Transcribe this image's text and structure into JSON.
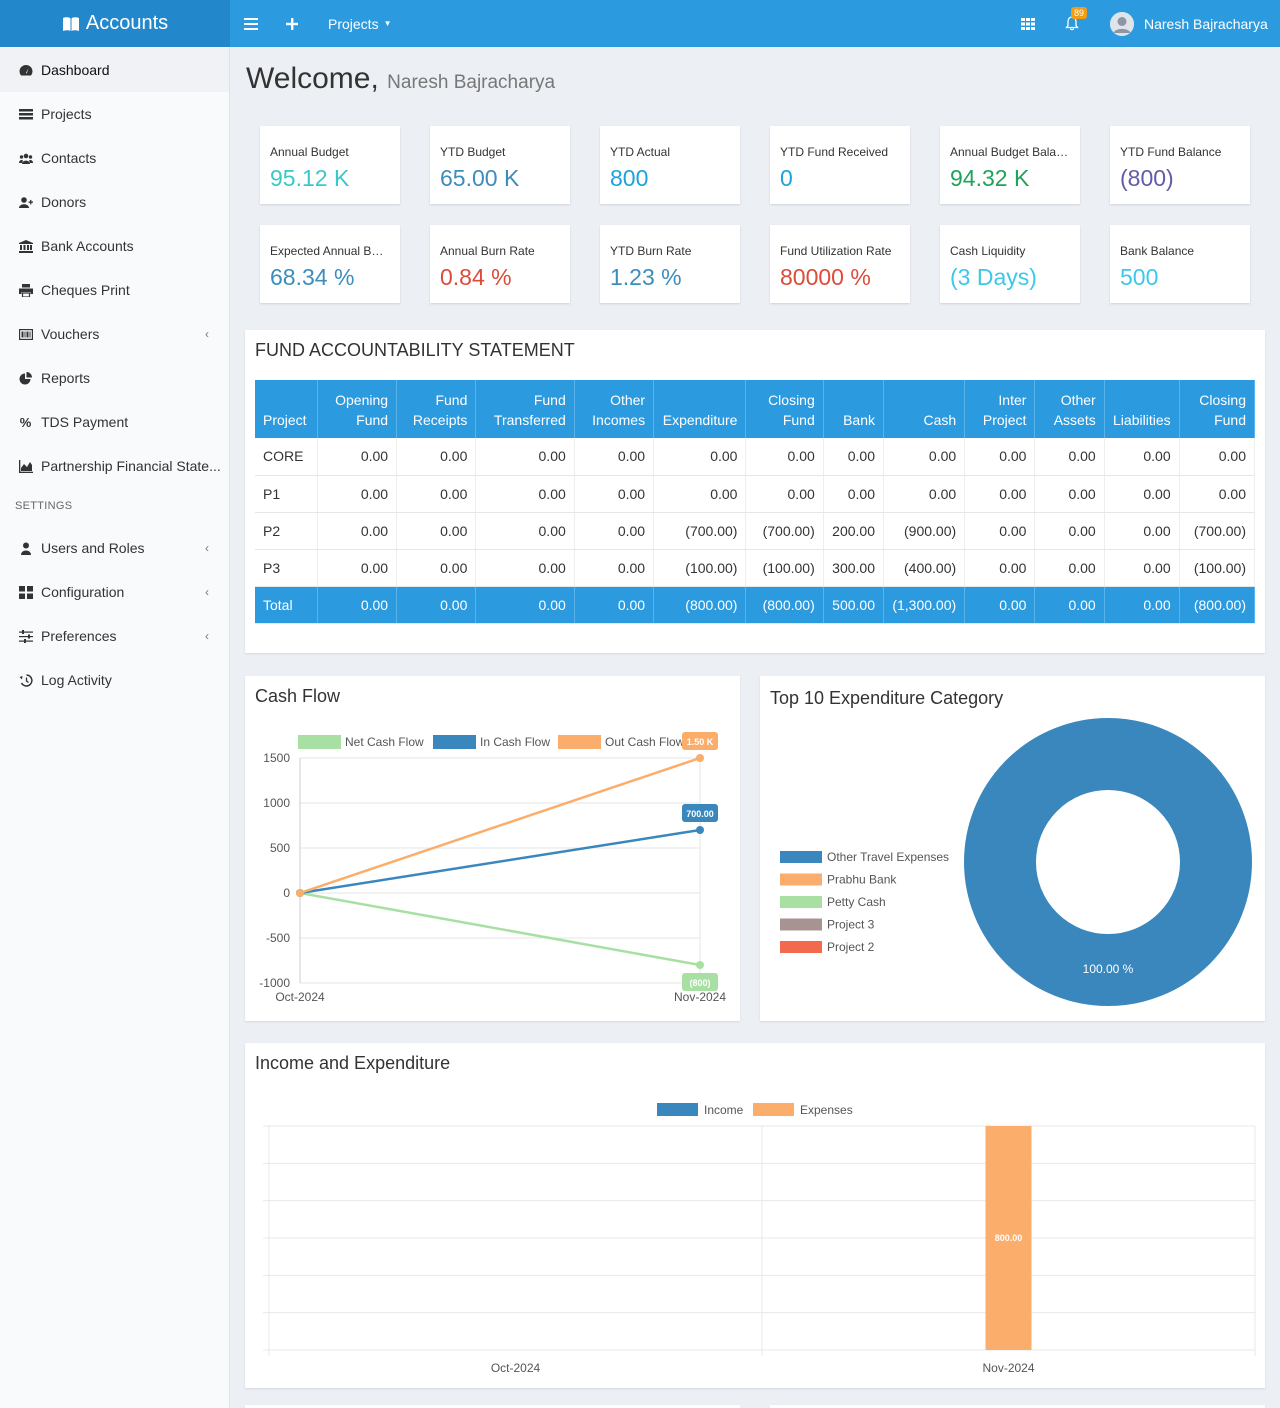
{
  "header": {
    "brand": "Accounts",
    "projects_menu": "Projects",
    "notification_count": "89",
    "user_name": "Naresh Bajracharya"
  },
  "sidebar": {
    "items": [
      {
        "label": "Dashboard",
        "icon": "dashboard-icon"
      },
      {
        "label": "Projects",
        "icon": "list-icon"
      },
      {
        "label": "Contacts",
        "icon": "users-icon"
      },
      {
        "label": "Donors",
        "icon": "user-plus-icon"
      },
      {
        "label": "Bank Accounts",
        "icon": "bank-icon"
      },
      {
        "label": "Cheques Print",
        "icon": "print-icon"
      },
      {
        "label": "Vouchers",
        "icon": "voucher-icon"
      },
      {
        "label": "Reports",
        "icon": "pie-chart-icon"
      },
      {
        "label": "TDS Payment",
        "icon": "percent-icon"
      },
      {
        "label": "Partnership Financial State...",
        "icon": "area-chart-icon"
      }
    ],
    "settings_header": "SETTINGS",
    "settings_items": [
      {
        "label": "Users and Roles",
        "icon": "user-icon"
      },
      {
        "label": "Configuration",
        "icon": "grid-icon"
      },
      {
        "label": "Preferences",
        "icon": "sliders-icon"
      },
      {
        "label": "Log Activity",
        "icon": "history-icon"
      }
    ]
  },
  "welcome": {
    "title": "Welcome,",
    "name": "Naresh Bajracharya"
  },
  "kpis": [
    {
      "label": "Annual Budget",
      "value": "95.12 K",
      "color": "#3cc8cb"
    },
    {
      "label": "YTD Budget",
      "value": "65.00 K",
      "color": "#3c8dbc"
    },
    {
      "label": "YTD Actual",
      "value": "800",
      "color": "#1ca3dc"
    },
    {
      "label": "YTD Fund Received",
      "value": "0",
      "color": "#1ca3dc"
    },
    {
      "label": "Annual Budget Balan...",
      "value": "94.32 K",
      "color": "#1fa35a"
    },
    {
      "label": "YTD Fund Balance",
      "value": "(800)",
      "color": "#605ca8"
    },
    {
      "label": "Expected Annual Bur...",
      "value": "68.34 %",
      "color": "#3c8dbc"
    },
    {
      "label": "Annual Burn Rate",
      "value": "0.84 %",
      "color": "#dd4b39"
    },
    {
      "label": "YTD Burn Rate",
      "value": "1.23 %",
      "color": "#3c8dbc"
    },
    {
      "label": "Fund Utilization Rate",
      "value": "80000 %",
      "color": "#dd4b39"
    },
    {
      "label": "Cash Liquidity",
      "value": "(3 Days)",
      "color": "#3cc8e9"
    },
    {
      "label": "Bank Balance",
      "value": "500",
      "color": "#3cc8e9"
    }
  ],
  "fund_statement": {
    "title": "FUND ACCOUNTABILITY STATEMENT",
    "headers": [
      [
        "Project"
      ],
      [
        "Opening",
        "Fund"
      ],
      [
        "Fund",
        "Receipts"
      ],
      [
        "Fund",
        "Transferred"
      ],
      [
        "Other",
        "Incomes"
      ],
      [
        "Expenditure"
      ],
      [
        "Closing",
        "Fund"
      ],
      [
        "Bank"
      ],
      [
        "Cash"
      ],
      [
        "Inter",
        "Project"
      ],
      [
        "Other",
        "Assets"
      ],
      [
        "Liabilities"
      ],
      [
        "Closing",
        "Fund"
      ]
    ],
    "rows": [
      [
        "CORE",
        "0.00",
        "0.00",
        "0.00",
        "0.00",
        "0.00",
        "0.00",
        "0.00",
        "0.00",
        "0.00",
        "0.00",
        "0.00",
        "0.00"
      ],
      [
        "P1",
        "0.00",
        "0.00",
        "0.00",
        "0.00",
        "0.00",
        "0.00",
        "0.00",
        "0.00",
        "0.00",
        "0.00",
        "0.00",
        "0.00"
      ],
      [
        "P2",
        "0.00",
        "0.00",
        "0.00",
        "0.00",
        "(700.00)",
        "(700.00)",
        "200.00",
        "(900.00)",
        "0.00",
        "0.00",
        "0.00",
        "(700.00)"
      ],
      [
        "P3",
        "0.00",
        "0.00",
        "0.00",
        "0.00",
        "(100.00)",
        "(100.00)",
        "300.00",
        "(400.00)",
        "0.00",
        "0.00",
        "0.00",
        "(100.00)"
      ]
    ],
    "total": [
      "Total",
      "0.00",
      "0.00",
      "0.00",
      "0.00",
      "(800.00)",
      "(800.00)",
      "500.00",
      "(1,300.00)",
      "0.00",
      "0.00",
      "0.00",
      "(800.00)"
    ]
  },
  "chart_data": [
    {
      "type": "line",
      "title": "Cash Flow",
      "categories": [
        "Oct-2024",
        "Nov-2024"
      ],
      "series": [
        {
          "name": "Net Cash Flow",
          "values": [
            0,
            -800
          ],
          "color": "#a8e0a3",
          "end_label": "(800)"
        },
        {
          "name": "In Cash Flow",
          "values": [
            0,
            700
          ],
          "color": "#3a87bd",
          "end_label": "700.00"
        },
        {
          "name": "Out Cash Flow",
          "values": [
            0,
            1500
          ],
          "color": "#fbad6b",
          "end_label": "1.50 K"
        }
      ],
      "yticks": [
        "1500",
        "1000",
        "500",
        "0",
        "-500",
        "-1000"
      ],
      "ylim": [
        -1000,
        1500
      ],
      "legend": "top",
      "grid": true
    },
    {
      "type": "pie",
      "title": "Top 10 Expenditure Category",
      "labels": [
        "Other Travel Expenses",
        "Prabhu Bank",
        "Petty Cash",
        "Project 3",
        "Project 2"
      ],
      "colors": [
        "#3a87bd",
        "#fbad6b",
        "#a8e0a3",
        "#a89393",
        "#f2694d"
      ],
      "values": [
        100,
        0,
        0,
        0,
        0
      ],
      "slice_label": "100.00 %",
      "legend": "left"
    },
    {
      "type": "bar",
      "title": "Income and Expenditure",
      "categories": [
        "Oct-2024",
        "Nov-2024"
      ],
      "series": [
        {
          "name": "Income",
          "values": [
            0,
            0
          ],
          "color": "#3a87bd"
        },
        {
          "name": "Expenses",
          "values": [
            0,
            800
          ],
          "color": "#fbad6b"
        }
      ],
      "data_labels": [
        "800.00"
      ],
      "legend": "top",
      "grid": true
    }
  ]
}
